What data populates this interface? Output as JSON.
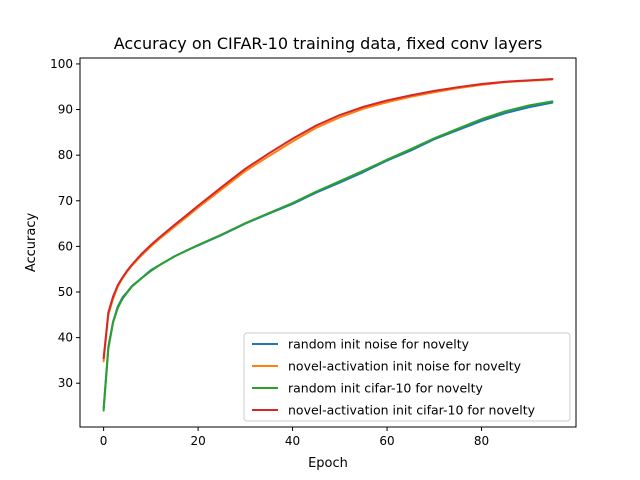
{
  "chart_data": {
    "type": "line",
    "title": "Accuracy on CIFAR-10 training data, fixed conv layers",
    "xlabel": "Epoch",
    "ylabel": "Accuracy",
    "xlim": [
      -5,
      100
    ],
    "ylim": [
      20.4,
      101.3
    ],
    "xticks": [
      0,
      20,
      40,
      60,
      80
    ],
    "yticks": [
      30,
      40,
      50,
      60,
      70,
      80,
      90,
      100
    ],
    "grid": false,
    "legend_position": "bottom-right",
    "x": [
      0,
      1,
      2,
      3,
      4,
      5,
      6,
      8,
      10,
      12,
      15,
      18,
      20,
      25,
      30,
      35,
      40,
      45,
      50,
      55,
      60,
      65,
      70,
      75,
      80,
      85,
      90,
      95
    ],
    "series": [
      {
        "name": "random init noise for novelty",
        "color": "#1f77b4",
        "values": [
          24.5,
          38.0,
          43.5,
          46.8,
          48.8,
          50.0,
          51.3,
          53.0,
          54.8,
          56.0,
          57.8,
          59.3,
          60.2,
          62.5,
          65.0,
          67.2,
          69.3,
          71.8,
          74.0,
          76.3,
          78.8,
          81.0,
          83.5,
          85.5,
          87.5,
          89.2,
          90.5,
          91.5
        ]
      },
      {
        "name": "novel-activation init noise for novelty",
        "color": "#ff7f0e",
        "values": [
          34.8,
          45.0,
          48.5,
          51.2,
          53.0,
          54.5,
          55.8,
          58.0,
          60.0,
          61.8,
          64.3,
          66.8,
          68.5,
          72.5,
          76.5,
          79.8,
          83.0,
          86.0,
          88.3,
          90.2,
          91.6,
          92.8,
          93.8,
          94.7,
          95.4,
          96.0,
          96.3,
          96.6
        ]
      },
      {
        "name": "random init cifar-10 for novelty",
        "color": "#2ca02c",
        "values": [
          24.0,
          37.5,
          43.3,
          46.5,
          48.5,
          49.9,
          51.2,
          53.0,
          54.6,
          56.0,
          57.8,
          59.3,
          60.3,
          62.6,
          65.1,
          67.3,
          69.5,
          72.0,
          74.3,
          76.6,
          79.0,
          81.3,
          83.7,
          85.8,
          87.9,
          89.6,
          90.9,
          91.8
        ]
      },
      {
        "name": "novel-activation init cifar-10 for novelty",
        "color": "#d62728",
        "values": [
          35.5,
          45.5,
          49.0,
          51.5,
          53.2,
          54.7,
          56.0,
          58.3,
          60.3,
          62.1,
          64.7,
          67.2,
          68.9,
          73.0,
          77.0,
          80.4,
          83.6,
          86.5,
          88.8,
          90.6,
          92.0,
          93.1,
          94.1,
          94.9,
          95.6,
          96.1,
          96.4,
          96.7
        ]
      }
    ]
  }
}
